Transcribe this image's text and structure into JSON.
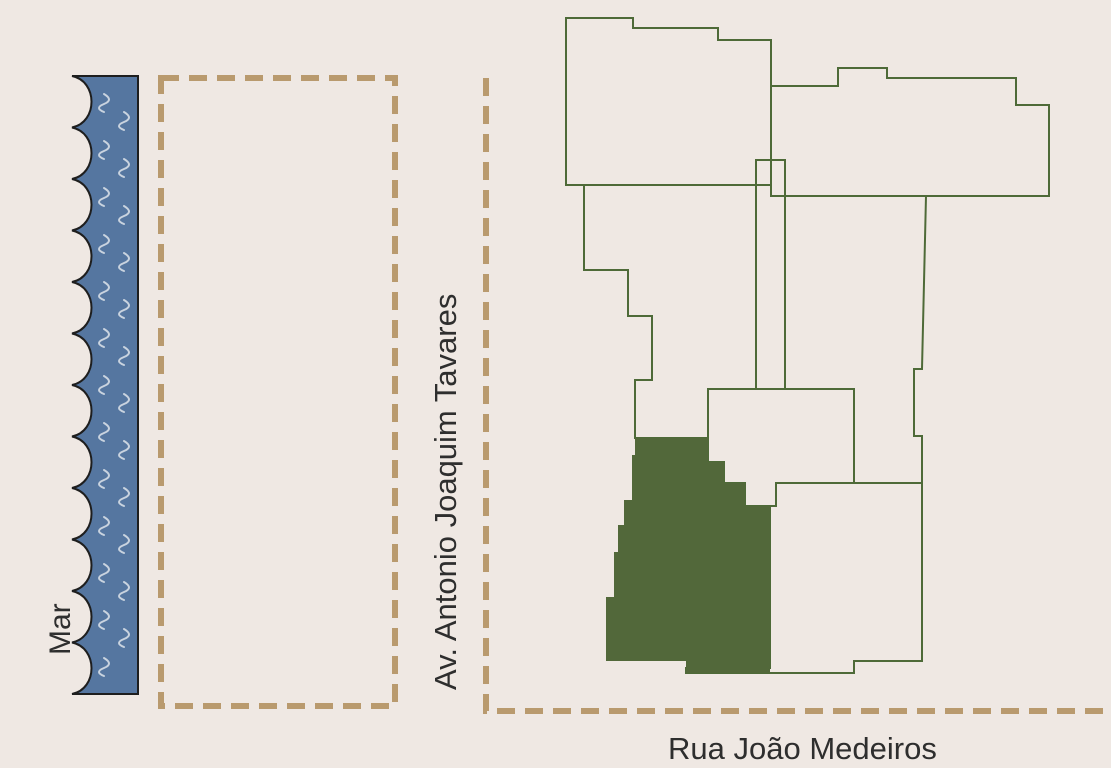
{
  "labels": {
    "sea": "Mar",
    "avenue": "Av. Antonio Joaquim Tavares",
    "street": "Rua João Medeiros"
  },
  "colors": {
    "background": "#efe8e3",
    "sea_fill": "#5576a0",
    "sea_outline": "#1e1e1e",
    "wave_line": "#c9d3df",
    "road_dashes": "#b99a6e",
    "lot_outline": "#4e6a38",
    "highlighted_lot": "#52683a"
  },
  "map": {
    "highlighted_lot_count": 1
  }
}
